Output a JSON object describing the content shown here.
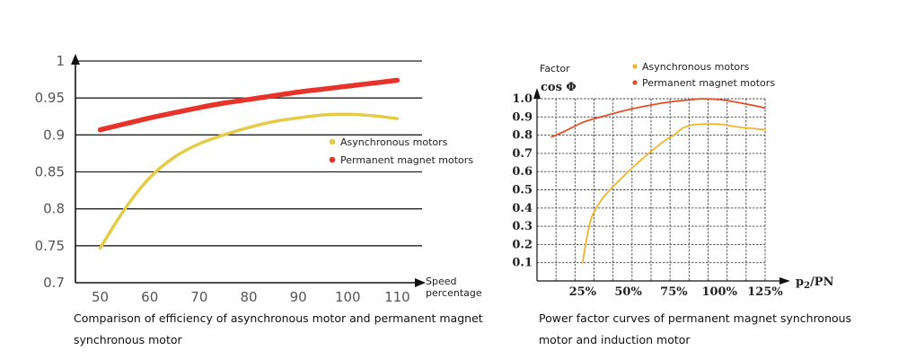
{
  "chart_data": [
    {
      "type": "line",
      "caption": "Comparison of efficiency of asynchronous motor and permanent magnet synchronous motor",
      "xlabel": "Speed percentage",
      "ylabel": "",
      "x_ticks": [
        "50",
        "60",
        "70",
        "80",
        "90",
        "100",
        "110"
      ],
      "y_ticks": [
        "0.7",
        "0.75",
        "0.8",
        "0.85",
        "0.9",
        "0.95",
        "1"
      ],
      "xlim": [
        45,
        115
      ],
      "ylim": [
        0.7,
        1.0
      ],
      "grid": "horizontal",
      "legend_position": "right-middle",
      "series": [
        {
          "name": "Asynchronous motors",
          "color": "#e4cc48",
          "x": [
            50,
            55,
            60,
            65,
            70,
            75,
            80,
            85,
            90,
            95,
            100,
            105,
            110
          ],
          "y": [
            0.747,
            0.8,
            0.842,
            0.87,
            0.888,
            0.9,
            0.91,
            0.918,
            0.923,
            0.927,
            0.928,
            0.926,
            0.922
          ]
        },
        {
          "name": "Permanent magnet motors",
          "color": "#e8332a",
          "x": [
            50,
            55,
            60,
            65,
            70,
            75,
            80,
            85,
            90,
            95,
            100,
            105,
            110
          ],
          "y": [
            0.907,
            0.915,
            0.923,
            0.93,
            0.937,
            0.943,
            0.948,
            0.953,
            0.958,
            0.962,
            0.966,
            0.97,
            0.974
          ]
        }
      ]
    },
    {
      "type": "line",
      "title": "Factor",
      "caption": "Power factor curves of permanent magnet synchronous motor and induction motor",
      "ylabel": "cos Φ",
      "xlabel_main": "p",
      "xlabel_sub": "2",
      "xlabel_tail": "/PN",
      "x_ticks": [
        "25%",
        "50%",
        "75%",
        "100%",
        "125%"
      ],
      "y_ticks": [
        "0.1",
        "0.2",
        "0.3",
        "0.4",
        "0.5",
        "0.6",
        "0.7",
        "0.8",
        "0.9",
        "1.0"
      ],
      "xlim": [
        0,
        125
      ],
      "ylim": [
        0,
        1.0
      ],
      "grid": "both",
      "legend_position": "top-right",
      "series": [
        {
          "name": "Asynchronous motors",
          "color": "#f2b42c",
          "x": [
            25,
            27,
            30,
            35,
            40,
            50,
            60,
            70,
            75,
            80,
            85,
            90,
            100,
            110,
            125
          ],
          "y": [
            0.1,
            0.22,
            0.35,
            0.44,
            0.5,
            0.6,
            0.69,
            0.77,
            0.8,
            0.84,
            0.855,
            0.86,
            0.86,
            0.845,
            0.83
          ]
        },
        {
          "name": "Permanent magnet motors",
          "color": "#e24f2a",
          "x": [
            8,
            15,
            25,
            35,
            50,
            65,
            75,
            85,
            90,
            100,
            110,
            125
          ],
          "y": [
            0.79,
            0.82,
            0.87,
            0.9,
            0.94,
            0.97,
            0.985,
            0.995,
            1.0,
            0.995,
            0.98,
            0.95
          ]
        }
      ]
    }
  ]
}
